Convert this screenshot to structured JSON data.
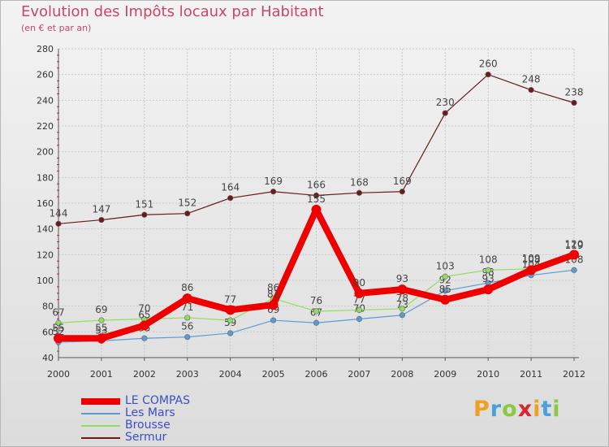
{
  "header": {
    "title": "Evolution des Impôts locaux par Habitant",
    "subtitle": "(en € et par an)"
  },
  "logo": {
    "text": "Proxiti",
    "letters": [
      "P",
      "r",
      "o",
      "x",
      "i",
      "t",
      "i"
    ],
    "letter_colors": [
      "#f0a020",
      "#4aa0d8",
      "#8cc840",
      "#d8262e",
      "#f0a020",
      "#4aa0d8",
      "#8cc840"
    ]
  },
  "chart_data": {
    "type": "line",
    "x": [
      "2000",
      "2001",
      "2002",
      "2003",
      "2004",
      "2005",
      "2006",
      "2007",
      "2008",
      "2009",
      "2010",
      "2011",
      "2012"
    ],
    "ylim": [
      40,
      280
    ],
    "yticks": [
      40,
      60,
      80,
      100,
      120,
      140,
      160,
      180,
      200,
      220,
      240,
      260,
      280
    ],
    "grid": true,
    "legend_position": "bottom-left",
    "series": [
      {
        "name": "Sermur",
        "color": "#6b1a1e",
        "values": [
          144,
          147,
          151,
          152,
          164,
          169,
          166,
          168,
          169,
          230,
          260,
          248,
          238
        ],
        "data_labels": [
          "144",
          "147",
          "151",
          "152",
          "164",
          "169",
          "166",
          "168",
          "169",
          "230",
          "260",
          "248",
          "238"
        ]
      },
      {
        "name": "Les Mars",
        "color": "#5a9bd5",
        "values": [
          52,
          53,
          55,
          56,
          59,
          69,
          67,
          70,
          73,
          92,
          98,
          104,
          108
        ],
        "data_labels": [
          "52",
          "53",
          "55",
          "56",
          "59",
          "69",
          "67",
          "70",
          "73",
          "92",
          "98",
          "104",
          "108"
        ]
      },
      {
        "name": "Brousse",
        "color": "#90dd60",
        "values": [
          67,
          69,
          70,
          71,
          69,
          86,
          76,
          77,
          78,
          103,
          108,
          109,
          119
        ],
        "data_labels": [
          "67",
          "69",
          "70",
          "71",
          "69",
          "86",
          "76",
          "77",
          "78",
          "103",
          "108",
          "109",
          "119"
        ]
      },
      {
        "name": "LE COMPAS",
        "color": "#ee0000",
        "values": [
          55,
          55,
          65,
          86,
          77,
          81,
          155,
          90,
          93,
          85,
          93,
          108,
          120
        ],
        "data_labels": [
          "55",
          "55",
          "65",
          "86",
          "77",
          "81",
          "155",
          "90",
          "93",
          "85",
          "93",
          "108",
          "120"
        ]
      }
    ],
    "legend": [
      {
        "name": "LE COMPAS",
        "color": "#ee0000",
        "weight": "thick"
      },
      {
        "name": "Les Mars",
        "color": "#5a9bd5",
        "weight": "thin"
      },
      {
        "name": "Brousse",
        "color": "#90dd60",
        "weight": "thin"
      },
      {
        "name": "Sermur",
        "color": "#6b1a1e",
        "weight": "thin"
      }
    ]
  }
}
